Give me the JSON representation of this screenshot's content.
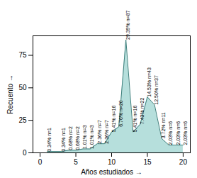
{
  "chart_data": {
    "type": "area",
    "x_label": "Años estudiados",
    "y_label": "Recuento",
    "x": [
      1,
      3,
      4,
      5,
      6,
      7,
      8,
      9,
      10,
      11,
      12,
      13,
      14,
      15,
      16,
      17,
      18,
      19,
      20
    ],
    "values": [
      1,
      1,
      2,
      2,
      3,
      3,
      7,
      7,
      16,
      20,
      87,
      16,
      22,
      43,
      37,
      11,
      6,
      6,
      6
    ],
    "value_labels": [
      "0.34% n=1",
      "0.34% n=1",
      "0.68% n=2",
      "0.68% n=2",
      "1.01% n=3",
      "1.01% n=3",
      "2.36% n=7",
      "2.36% n=7",
      "5.41% n=16",
      "6.76% n=20",
      "29.39% n=87",
      "5.41% n=16",
      "7.43% n=22",
      "14.53% n=43",
      "12.50% n=37",
      "3.72% n=11",
      "2.03% n=6",
      "2.03% n=6",
      "2.03% n=6"
    ],
    "data_labels": true,
    "color": "#a9d9d6",
    "xlim": [
      -1,
      21
    ],
    "xticks": [
      0,
      5,
      10,
      15,
      20
    ],
    "ylim": [
      0,
      90
    ],
    "yticks": [
      0,
      25,
      50,
      75
    ],
    "grid": false
  }
}
